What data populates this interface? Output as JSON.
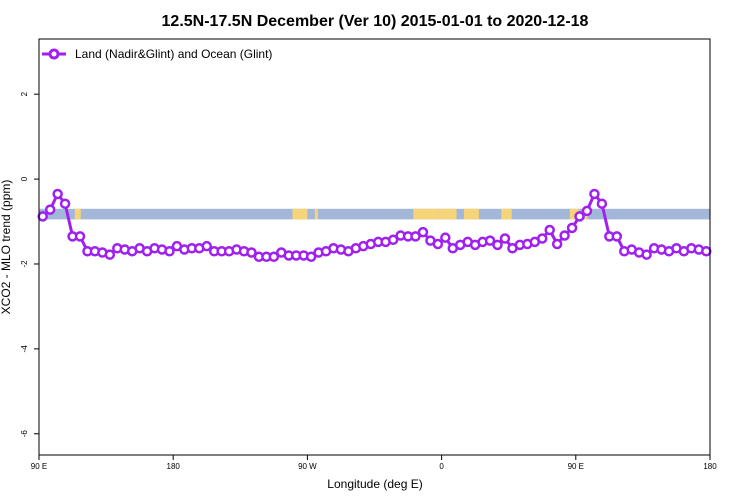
{
  "chart_data": {
    "type": "line",
    "title": "12.5N-17.5N December (Ver 10)   2015-01-01 to 2020-12-18",
    "xlabel": "Longitude (deg E)",
    "ylabel": "XCO2 - MLO trend (ppm)",
    "x_ticks": [
      {
        "value": 90,
        "label": "90 E"
      },
      {
        "value": 180,
        "label": "180"
      },
      {
        "value": 270,
        "label": "90 W"
      },
      {
        "value": 360,
        "label": "0"
      },
      {
        "value": 450,
        "label": "90 E"
      },
      {
        "value": 540,
        "label": "180"
      }
    ],
    "y_ticks": [
      2,
      0,
      -2,
      -4,
      -6
    ],
    "xlim": [
      90,
      540
    ],
    "ylim": [
      -6.5,
      3.3
    ],
    "grid": false,
    "legend_position": "top-left",
    "colors": {
      "series": "#a020f0",
      "ocean": "#a3b8d8",
      "land": "#f5d47a",
      "axis": "#000000"
    },
    "surface_band": {
      "y_range": [
        -0.95,
        -0.7
      ],
      "land_segments": [
        [
          114,
          118
        ],
        [
          260,
          270
        ],
        [
          275,
          277
        ],
        [
          341,
          358
        ],
        [
          358,
          370
        ],
        [
          375,
          385
        ],
        [
          400,
          407
        ],
        [
          446,
          452
        ],
        [
          456,
          458
        ]
      ]
    },
    "series": [
      {
        "name": "Land (Nadir&Glint) and Ocean (Glint)",
        "x": [
          92.5,
          97.5,
          102.5,
          107.5,
          112.5,
          117.5,
          122.5,
          127.5,
          132.5,
          137.5,
          142.5,
          147.5,
          152.5,
          157.5,
          162.5,
          167.5,
          172.5,
          177.5,
          182.5,
          187.5,
          192.5,
          197.5,
          202.5,
          207.5,
          212.5,
          217.5,
          222.5,
          227.5,
          232.5,
          237.5,
          242.5,
          247.5,
          252.5,
          257.5,
          262.5,
          267.5,
          272.5,
          277.5,
          282.5,
          287.5,
          292.5,
          297.5,
          302.5,
          307.5,
          312.5,
          317.5,
          322.5,
          327.5,
          332.5,
          337.5,
          342.5,
          347.5,
          352.5,
          357.5,
          362.5,
          367.5,
          372.5,
          377.5,
          382.5,
          387.5,
          392.5,
          397.5,
          402.5,
          407.5,
          412.5,
          417.5,
          422.5,
          427.5,
          432.5,
          437.5,
          442.5,
          447.5,
          452.5,
          457.5,
          462.5,
          467.5,
          472.5,
          477.5,
          482.5,
          487.5,
          492.5,
          497.5,
          502.5,
          507.5,
          512.5,
          517.5,
          522.5,
          527.5,
          532.5,
          537.5
        ],
        "y": [
          -0.88,
          -0.72,
          -0.35,
          -0.58,
          -1.35,
          -1.35,
          -1.7,
          -1.7,
          -1.73,
          -1.78,
          -1.63,
          -1.66,
          -1.7,
          -1.63,
          -1.7,
          -1.63,
          -1.66,
          -1.7,
          -1.58,
          -1.66,
          -1.63,
          -1.63,
          -1.58,
          -1.7,
          -1.7,
          -1.7,
          -1.66,
          -1.7,
          -1.73,
          -1.83,
          -1.83,
          -1.83,
          -1.73,
          -1.8,
          -1.8,
          -1.8,
          -1.83,
          -1.73,
          -1.7,
          -1.63,
          -1.66,
          -1.7,
          -1.63,
          -1.58,
          -1.53,
          -1.48,
          -1.48,
          -1.43,
          -1.33,
          -1.35,
          -1.35,
          -1.25,
          -1.45,
          -1.53,
          -1.38,
          -1.63,
          -1.55,
          -1.48,
          -1.55,
          -1.48,
          -1.45,
          -1.55,
          -1.4,
          -1.63,
          -1.55,
          -1.53,
          -1.48,
          -1.4,
          -1.2,
          -1.53,
          -1.33,
          -1.15,
          -0.88,
          -0.75,
          -0.35,
          -0.58,
          -1.35,
          -1.35,
          -1.7,
          -1.66,
          -1.73,
          -1.78,
          -1.63,
          -1.66,
          -1.7,
          -1.63,
          -1.7,
          -1.63,
          -1.66,
          -1.7
        ]
      }
    ]
  }
}
